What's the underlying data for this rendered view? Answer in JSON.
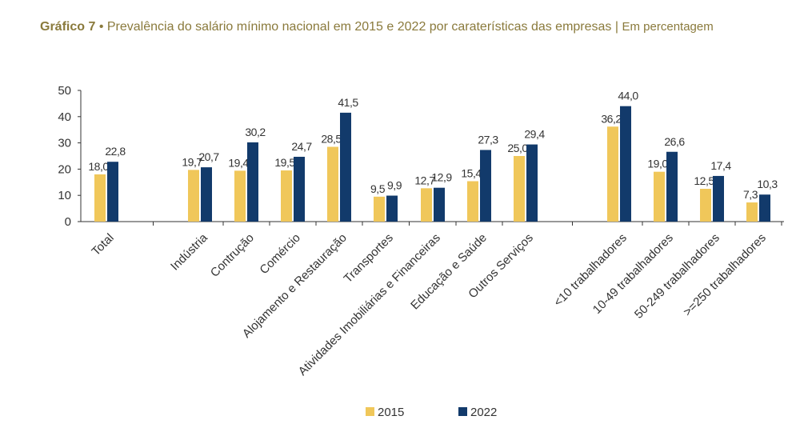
{
  "title": {
    "lead": "Gráfico 7",
    "bullet": "•",
    "text": "Prevalência do salário mínimo nacional em 2015 e 2022 por caraterísticas das empresas",
    "separator": "|",
    "unit": "Em percentagem"
  },
  "colors": {
    "s2015": "#f0c75a",
    "s2022": "#123a6b",
    "axis": "#333333"
  },
  "chart_data": {
    "type": "bar",
    "title": "Prevalência do salário mínimo nacional em 2015 e 2022 por caraterísticas das empresas",
    "ylabel": "Em percentagem",
    "ylim": [
      0,
      50
    ],
    "yticks": [
      "0",
      "10",
      "20",
      "30",
      "40",
      "50"
    ],
    "categories": [
      "Total",
      "Indústria",
      "Contrução",
      "Comércio",
      "Alojamento e Restauração",
      "Transportes",
      "Atividades Imobiliárias e Financeiras",
      "Educação e Saúde",
      "Outros Serviços",
      "<10 trabalhadores",
      "10-49 trabalhadores",
      "50-249 trabalhadores",
      ">=250 trabalhadores"
    ],
    "series": [
      {
        "name": "2015",
        "values": [
          18.0,
          19.7,
          19.4,
          19.5,
          28.5,
          9.5,
          12.7,
          15.4,
          25.0,
          36.2,
          19.0,
          12.5,
          7.3
        ],
        "labels": [
          "18,0",
          "19,7",
          "19,4",
          "19,5",
          "28,5",
          "9,5",
          "12,7",
          "15,4",
          "25,0",
          "36,2",
          "19,0",
          "12,5",
          "7,3"
        ]
      },
      {
        "name": "2022",
        "values": [
          22.8,
          20.7,
          30.2,
          24.7,
          41.5,
          9.9,
          12.9,
          27.3,
          29.4,
          44.0,
          26.6,
          17.4,
          10.3
        ],
        "labels": [
          "22,8",
          "20,7",
          "30,2",
          "24,7",
          "41,5",
          "9,9",
          "12,9",
          "27,3",
          "29,4",
          "44,0",
          "26,6",
          "17,4",
          "10,3"
        ]
      }
    ],
    "legend": [
      "2015",
      "2022"
    ]
  }
}
